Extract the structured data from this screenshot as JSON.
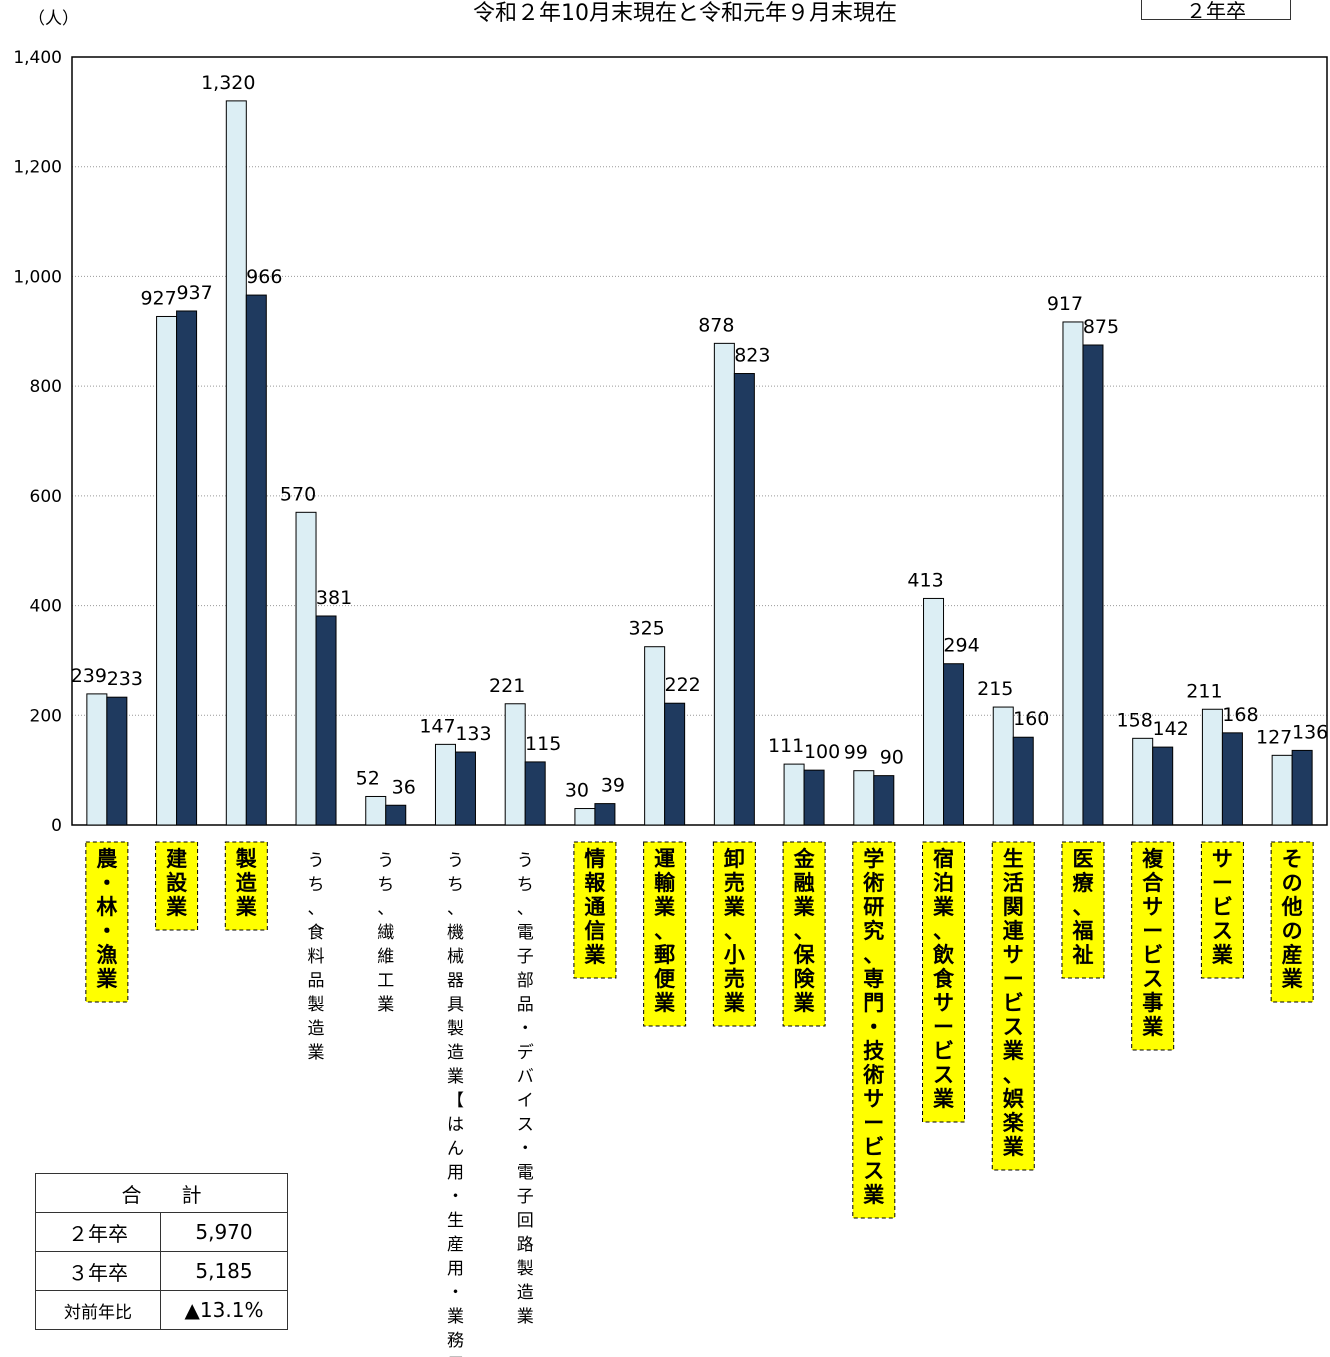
{
  "header": {
    "title": "令和２年10月末現在と令和元年９月末現在",
    "corner_label": "２年卒"
  },
  "chart_data": {
    "type": "bar",
    "ylabel": "（人）",
    "ylim": [
      0,
      1400
    ],
    "yticks": [
      0,
      200,
      400,
      600,
      800,
      1000,
      1200,
      1400
    ],
    "ytick_labels": [
      "0",
      "200",
      "400",
      "600",
      "800",
      "1,000",
      "1,200",
      "1,400"
    ],
    "grid": true,
    "categories": [
      {
        "label": "農・林・漁業",
        "highlight": true
      },
      {
        "label": "建設業",
        "highlight": true
      },
      {
        "label": "製造業",
        "highlight": true
      },
      {
        "label": "うち、食料品製造業",
        "highlight": false
      },
      {
        "label": "うち、繊維工業",
        "highlight": false
      },
      {
        "label": "うち、機械器具製造業【はん用・生産用・業務用】",
        "highlight": false
      },
      {
        "label": "うち、電子部品・デバイス・電子回路製造業",
        "highlight": false
      },
      {
        "label": "情報通信業",
        "highlight": true
      },
      {
        "label": "運輸業、郵便業",
        "highlight": true
      },
      {
        "label": "卸売業、小売業",
        "highlight": true
      },
      {
        "label": "金融業、保険業",
        "highlight": true
      },
      {
        "label": "学術研究、専門・技術サービス業",
        "highlight": true
      },
      {
        "label": "宿泊業、飲食サービス業",
        "highlight": true
      },
      {
        "label": "生活関連サービス業、娯楽業",
        "highlight": true
      },
      {
        "label": "医療、福祉",
        "highlight": true
      },
      {
        "label": "複合サービス事業",
        "highlight": true
      },
      {
        "label": "サービス業",
        "highlight": true
      },
      {
        "label": "その他の産業",
        "highlight": true
      }
    ],
    "series": [
      {
        "color": "#dceef4",
        "values": [
          239,
          927,
          1320,
          570,
          52,
          147,
          221,
          30,
          325,
          878,
          111,
          99,
          413,
          215,
          917,
          158,
          211,
          127
        ],
        "labels": [
          "239",
          "927",
          "1,320",
          "570",
          "52",
          "147",
          "221",
          "30",
          "325",
          "878",
          "111",
          "99",
          "413",
          "215",
          "917",
          "158",
          "211",
          "127"
        ]
      },
      {
        "color": "#1f3a5f",
        "values": [
          233,
          937,
          966,
          381,
          36,
          133,
          115,
          39,
          222,
          823,
          100,
          90,
          294,
          160,
          875,
          142,
          168,
          136
        ],
        "labels": [
          "233",
          "937",
          "966",
          "381",
          "36",
          "133",
          "115",
          "39",
          "222",
          "823",
          "100",
          "90",
          "294",
          "160",
          "875",
          "142",
          "168",
          "136"
        ]
      }
    ],
    "colors": {
      "highlight_box": "#ffff00"
    }
  },
  "totals": {
    "header": "合　　計",
    "rows": [
      {
        "label": "２年卒",
        "value": "5,970"
      },
      {
        "label": "３年卒",
        "value": "5,185"
      },
      {
        "label": "対前年比",
        "value": "▲13.1%"
      }
    ]
  }
}
